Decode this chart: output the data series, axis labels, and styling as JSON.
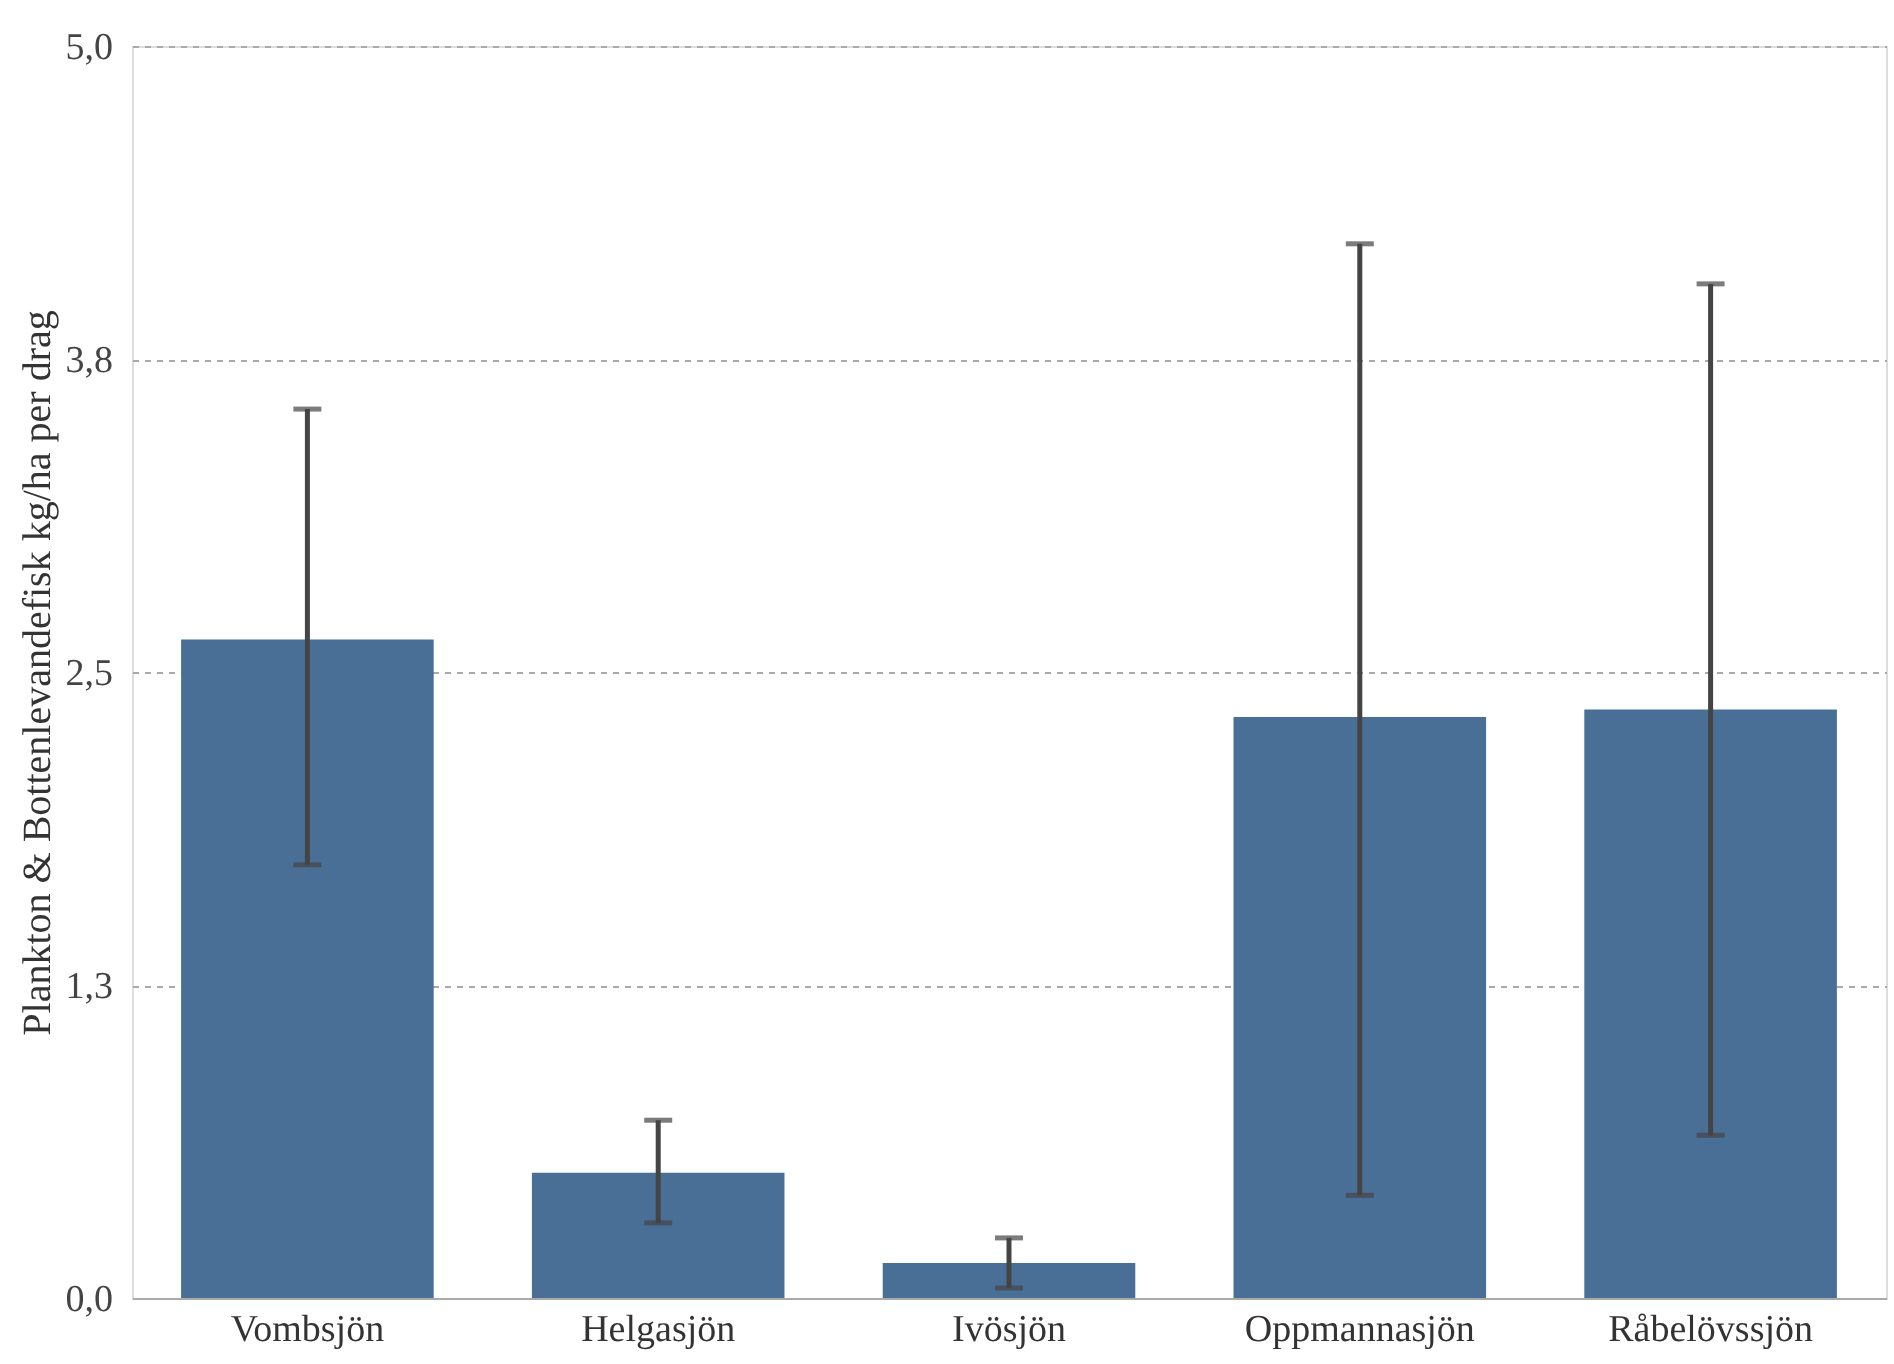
{
  "chart_data": {
    "type": "bar",
    "ylabel": "Plankton & Bottenlevandefisk kg/ha per drag",
    "categories": [
      "Vombsjön",
      "Helgasjön",
      "Ivösjön",
      "Oppmannasjön",
      "Råbelövssjön"
    ],
    "values": [
      2.63,
      0.5,
      0.14,
      2.32,
      2.35
    ],
    "errors": [
      [
        1.73,
        3.55
      ],
      [
        0.3,
        0.71
      ],
      [
        0.04,
        0.24
      ],
      [
        0.41,
        4.21
      ],
      [
        0.65,
        4.05
      ]
    ],
    "color": "#4a6f96",
    "ylim": [
      0,
      5
    ],
    "yticks": [
      {
        "value": 0,
        "label": "0,0"
      },
      {
        "value": 1.25,
        "label": "1,3"
      },
      {
        "value": 2.5,
        "label": "2,5"
      },
      {
        "value": 3.75,
        "label": "3,8"
      },
      {
        "value": 5,
        "label": "5,0"
      }
    ],
    "grid": "y"
  }
}
